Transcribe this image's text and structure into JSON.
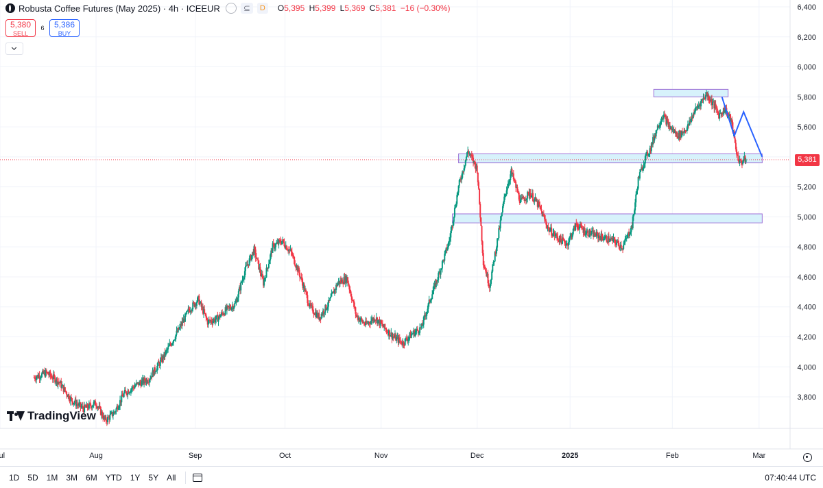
{
  "header": {
    "title": "Robusta Coffee Futures (May 2025) · 4h · ICEEUR",
    "badge": "D",
    "ohlc": {
      "o_label": "O",
      "o": "5,395",
      "h_label": "H",
      "h": "5,399",
      "l_label": "L",
      "l": "5,369",
      "c_label": "C",
      "c": "5,381",
      "change": "−16 (−0.30%)"
    }
  },
  "trade": {
    "sell_price": "5,380",
    "sell_label": "SELL",
    "spread": "6",
    "buy_price": "5,386",
    "buy_label": "BUY"
  },
  "branding": {
    "logo_text": "TradingView"
  },
  "timeframes": [
    "1D",
    "5D",
    "1M",
    "3M",
    "6M",
    "YTD",
    "1Y",
    "5Y",
    "All"
  ],
  "clock": "07:40:44 UTC",
  "colors": {
    "up": "#089981",
    "down": "#f23645",
    "zone_fill": "#d7f2fb",
    "zone_stroke": "#9c6fd6",
    "projection": "#2962ff",
    "grid": "#f0f3fa"
  },
  "icons": [
    "coffee-symbol-icon",
    "compare-icon",
    "chevron-down-icon",
    "calendar-icon",
    "gear-icon"
  ],
  "chart_data": {
    "type": "candlestick",
    "y_ticks": [
      3800,
      4000,
      4200,
      4400,
      4600,
      4800,
      5000,
      5200,
      5400,
      5600,
      5800,
      6000,
      6200,
      6400
    ],
    "y_tick_labels": [
      "3,800",
      "4,000",
      "4,200",
      "4,400",
      "4,600",
      "4,800",
      "5,000",
      "5,200",
      "5,400",
      "5,600",
      "5,800",
      "6,000",
      "6,200",
      "6,400"
    ],
    "ylim": [
      3590,
      6400
    ],
    "xlim": [
      "2024-07-01",
      "2025-03-13"
    ],
    "x_ticks": [
      {
        "date": "2024-07-01",
        "label": "Jul"
      },
      {
        "date": "2024-08-01",
        "label": "Aug"
      },
      {
        "date": "2024-09-02",
        "label": "Sep"
      },
      {
        "date": "2024-10-01",
        "label": "Oct"
      },
      {
        "date": "2024-11-01",
        "label": "Nov"
      },
      {
        "date": "2024-12-02",
        "label": "Dec"
      },
      {
        "date": "2025-01-01",
        "label": "2025"
      },
      {
        "date": "2025-02-03",
        "label": "Feb"
      },
      {
        "date": "2025-03-03",
        "label": "Mar"
      }
    ],
    "last_price": 5381,
    "last_price_label": "5,381",
    "closes": [
      [
        "2024-07-12",
        3930
      ],
      [
        "2024-07-16",
        3960
      ],
      [
        "2024-07-20",
        3900
      ],
      [
        "2024-07-24",
        3780
      ],
      [
        "2024-07-28",
        3720
      ],
      [
        "2024-08-01",
        3760
      ],
      [
        "2024-08-04",
        3640
      ],
      [
        "2024-08-07",
        3700
      ],
      [
        "2024-08-10",
        3820
      ],
      [
        "2024-08-14",
        3880
      ],
      [
        "2024-08-18",
        3920
      ],
      [
        "2024-08-22",
        4040
      ],
      [
        "2024-08-25",
        4150
      ],
      [
        "2024-08-28",
        4260
      ],
      [
        "2024-08-31",
        4380
      ],
      [
        "2024-09-03",
        4450
      ],
      [
        "2024-09-06",
        4300
      ],
      [
        "2024-09-09",
        4320
      ],
      [
        "2024-09-12",
        4380
      ],
      [
        "2024-09-15",
        4420
      ],
      [
        "2024-09-18",
        4640
      ],
      [
        "2024-09-21",
        4780
      ],
      [
        "2024-09-24",
        4560
      ],
      [
        "2024-09-27",
        4800
      ],
      [
        "2024-09-30",
        4840
      ],
      [
        "2024-10-03",
        4760
      ],
      [
        "2024-10-06",
        4600
      ],
      [
        "2024-10-09",
        4400
      ],
      [
        "2024-10-12",
        4330
      ],
      [
        "2024-10-15",
        4420
      ],
      [
        "2024-10-18",
        4560
      ],
      [
        "2024-10-21",
        4590
      ],
      [
        "2024-10-24",
        4340
      ],
      [
        "2024-10-27",
        4280
      ],
      [
        "2024-10-30",
        4330
      ],
      [
        "2024-11-02",
        4260
      ],
      [
        "2024-11-05",
        4200
      ],
      [
        "2024-11-08",
        4160
      ],
      [
        "2024-11-11",
        4220
      ],
      [
        "2024-11-14",
        4260
      ],
      [
        "2024-11-17",
        4460
      ],
      [
        "2024-11-20",
        4640
      ],
      [
        "2024-11-23",
        4840
      ],
      [
        "2024-11-26",
        5200
      ],
      [
        "2024-11-29",
        5440
      ],
      [
        "2024-12-02",
        5320
      ],
      [
        "2024-12-04",
        4700
      ],
      [
        "2024-12-06",
        4540
      ],
      [
        "2024-12-09",
        4900
      ],
      [
        "2024-12-11",
        5150
      ],
      [
        "2024-12-13",
        5300
      ],
      [
        "2024-12-16",
        5100
      ],
      [
        "2024-12-19",
        5160
      ],
      [
        "2024-12-22",
        5070
      ],
      [
        "2024-12-25",
        4920
      ],
      [
        "2024-12-28",
        4860
      ],
      [
        "2024-12-31",
        4820
      ],
      [
        "2025-01-03",
        4950
      ],
      [
        "2025-01-06",
        4900
      ],
      [
        "2025-01-09",
        4880
      ],
      [
        "2025-01-12",
        4860
      ],
      [
        "2025-01-15",
        4840
      ],
      [
        "2025-01-18",
        4800
      ],
      [
        "2025-01-21",
        4940
      ],
      [
        "2025-01-23",
        5250
      ],
      [
        "2025-01-25",
        5380
      ],
      [
        "2025-01-27",
        5460
      ],
      [
        "2025-01-29",
        5590
      ],
      [
        "2025-01-31",
        5680
      ],
      [
        "2025-02-02",
        5600
      ],
      [
        "2025-02-05",
        5540
      ],
      [
        "2025-02-08",
        5600
      ],
      [
        "2025-02-10",
        5700
      ],
      [
        "2025-02-12",
        5760
      ],
      [
        "2025-02-14",
        5820
      ],
      [
        "2025-02-16",
        5760
      ],
      [
        "2025-02-18",
        5680
      ],
      [
        "2025-02-20",
        5720
      ],
      [
        "2025-02-22",
        5640
      ],
      [
        "2025-02-24",
        5400
      ],
      [
        "2025-02-25",
        5360
      ],
      [
        "2025-02-26",
        5380
      ],
      [
        "2025-02-27",
        5381
      ]
    ],
    "zones": [
      {
        "from": "2025-01-28",
        "to": "2025-02-21",
        "low": 5800,
        "high": 5850
      },
      {
        "from": "2024-11-26",
        "to": "2025-03-04",
        "low": 5360,
        "high": 5420
      },
      {
        "from": "2024-11-24",
        "to": "2025-03-04",
        "low": 4960,
        "high": 5020
      }
    ],
    "projection": [
      [
        "2025-02-19",
        5800
      ],
      [
        "2025-02-23",
        5540
      ],
      [
        "2025-02-26",
        5700
      ],
      [
        "2025-03-04",
        5400
      ]
    ]
  }
}
